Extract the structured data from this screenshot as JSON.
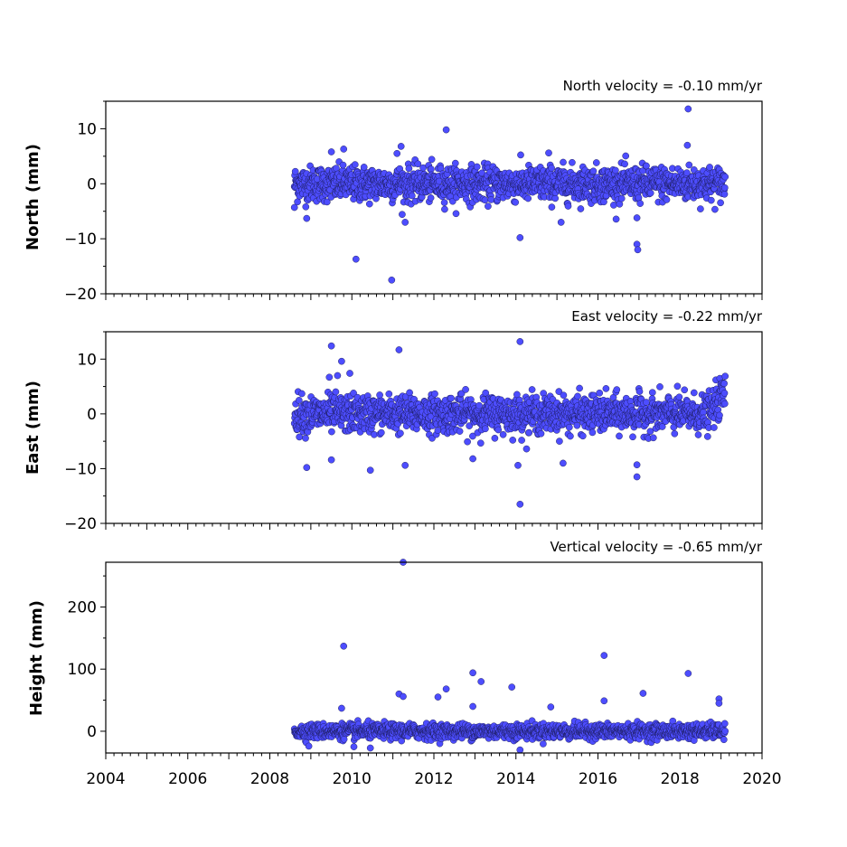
{
  "chart_data": [
    {
      "type": "scatter",
      "title": "North velocity = -0.10 mm/yr",
      "ylabel": "North (mm)",
      "xlim": [
        2004,
        2020
      ],
      "ylim": [
        -20,
        15
      ],
      "yticks": [
        -20,
        -10,
        0,
        10
      ],
      "marker_color": "#4d4dff",
      "series": [
        {
          "time_range": [
            2008.6,
            2019.1
          ],
          "scatter_sd": 1.6,
          "outliers": [
            {
              "x": 2010.1,
              "y": -13.7
            },
            {
              "x": 2010.97,
              "y": -17.5
            },
            {
              "x": 2012.3,
              "y": 9.8
            },
            {
              "x": 2014.1,
              "y": -9.8
            },
            {
              "x": 2016.95,
              "y": -11.0
            },
            {
              "x": 2016.97,
              "y": -12.0
            },
            {
              "x": 2018.2,
              "y": 13.6
            },
            {
              "x": 2018.18,
              "y": 7.0
            },
            {
              "x": 2009.5,
              "y": 5.8
            },
            {
              "x": 2009.8,
              "y": 6.3
            },
            {
              "x": 2011.2,
              "y": 6.8
            },
            {
              "x": 2011.1,
              "y": 5.5
            },
            {
              "x": 2014.8,
              "y": 5.6
            },
            {
              "x": 2011.3,
              "y": -7.0
            },
            {
              "x": 2008.6,
              "y": -4.3
            },
            {
              "x": 2008.9,
              "y": -6.3
            },
            {
              "x": 2015.1,
              "y": -7.0
            },
            {
              "x": 2016.95,
              "y": -6.2
            }
          ]
        }
      ]
    },
    {
      "type": "scatter",
      "title": "East velocity = -0.22 mm/yr",
      "ylabel": "East (mm)",
      "xlim": [
        2004,
        2020
      ],
      "ylim": [
        -20,
        15
      ],
      "yticks": [
        -20,
        -10,
        0,
        10
      ],
      "marker_color": "#4d4dff",
      "series": [
        {
          "time_range": [
            2008.6,
            2019.1
          ],
          "scatter_sd": 1.7,
          "outliers": [
            {
              "x": 2009.5,
              "y": 12.4
            },
            {
              "x": 2009.75,
              "y": 9.6
            },
            {
              "x": 2009.45,
              "y": 6.7
            },
            {
              "x": 2009.65,
              "y": 7.0
            },
            {
              "x": 2009.95,
              "y": 7.4
            },
            {
              "x": 2011.15,
              "y": 11.7
            },
            {
              "x": 2014.1,
              "y": 13.2
            },
            {
              "x": 2014.1,
              "y": -16.5
            },
            {
              "x": 2008.9,
              "y": -9.8
            },
            {
              "x": 2010.45,
              "y": -10.3
            },
            {
              "x": 2011.3,
              "y": -9.4
            },
            {
              "x": 2014.05,
              "y": -9.4
            },
            {
              "x": 2015.15,
              "y": -9.0
            },
            {
              "x": 2016.95,
              "y": -11.5
            },
            {
              "x": 2016.95,
              "y": -9.3
            },
            {
              "x": 2012.95,
              "y": -8.2
            },
            {
              "x": 2009.5,
              "y": -8.4
            }
          ],
          "end_jump": {
            "from": 2018.75,
            "to": 2019.1,
            "offset": 3.5
          }
        }
      ]
    },
    {
      "type": "scatter",
      "title": "Vertical velocity = -0.65 mm/yr",
      "ylabel": "Height (mm)",
      "xlim": [
        2004,
        2020
      ],
      "ylim": [
        -35,
        272
      ],
      "yticks": [
        0,
        100,
        200
      ],
      "xticks": [
        "2004",
        "2006",
        "2008",
        "2010",
        "2012",
        "2014",
        "2016",
        "2018",
        "2020"
      ],
      "marker_color": "#4d4dff",
      "series": [
        {
          "time_range": [
            2008.6,
            2019.1
          ],
          "scatter_sd": 6.0,
          "outliers": [
            {
              "x": 2009.8,
              "y": 137
            },
            {
              "x": 2011.25,
              "y": 272
            },
            {
              "x": 2012.95,
              "y": 94
            },
            {
              "x": 2013.15,
              "y": 80
            },
            {
              "x": 2013.9,
              "y": 71
            },
            {
              "x": 2012.3,
              "y": 68
            },
            {
              "x": 2012.1,
              "y": 55
            },
            {
              "x": 2011.15,
              "y": 60
            },
            {
              "x": 2011.25,
              "y": 56
            },
            {
              "x": 2016.15,
              "y": 122
            },
            {
              "x": 2016.15,
              "y": 49
            },
            {
              "x": 2017.1,
              "y": 61
            },
            {
              "x": 2018.2,
              "y": 93
            },
            {
              "x": 2014.85,
              "y": 39
            },
            {
              "x": 2009.75,
              "y": 37
            },
            {
              "x": 2012.95,
              "y": 40
            },
            {
              "x": 2010.05,
              "y": -25
            },
            {
              "x": 2010.45,
              "y": -27
            },
            {
              "x": 2014.1,
              "y": -30
            },
            {
              "x": 2008.95,
              "y": -24
            },
            {
              "x": 2018.95,
              "y": 52
            },
            {
              "x": 2018.95,
              "y": 45
            }
          ]
        }
      ]
    }
  ]
}
